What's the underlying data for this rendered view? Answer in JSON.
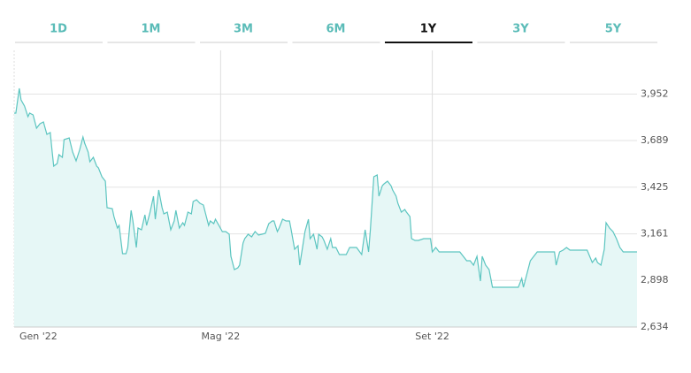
{
  "tabs": [
    "1D",
    "1M",
    "3M",
    "6M",
    "1Y",
    "3Y",
    "5Y"
  ],
  "active_tab": 4,
  "chart_data": {
    "type": "area",
    "color": "#5cc5c0",
    "fill": "#e6f7f6",
    "x": [
      0,
      1,
      3,
      4,
      6,
      8,
      9,
      11,
      13,
      15,
      17,
      19,
      21,
      22,
      23,
      25,
      26,
      28,
      29,
      32,
      34,
      36,
      38,
      40,
      41,
      43,
      44,
      46,
      48,
      49,
      51,
      53,
      54,
      57,
      58,
      60,
      61,
      63,
      65,
      66,
      68,
      69,
      71,
      72,
      74,
      76,
      77,
      79,
      81,
      82,
      84,
      86,
      87,
      89,
      91,
      93,
      94,
      96,
      98,
      99,
      101,
      103,
      104,
      106,
      108,
      110,
      111,
      113,
      114,
      116,
      117,
      119,
      121,
      123,
      125,
      126,
      128,
      130,
      131,
      133,
      134,
      136,
      138,
      140,
      142,
      144,
      146,
      148,
      150,
      151,
      153,
      154,
      156,
      158,
      160,
      161,
      163,
      165,
      166,
      168,
      169,
      171,
      172,
      174,
      176,
      177,
      179,
      180,
      182,
      184,
      185,
      187,
      189,
      191,
      193,
      195,
      197,
      199,
      202,
      204,
      206,
      207,
      209,
      211,
      212,
      214,
      215,
      217,
      219,
      220,
      222,
      223,
      225,
      227,
      228,
      230,
      231,
      233,
      235,
      238,
      240,
      242,
      243,
      245,
      247,
      249,
      251,
      254,
      257,
      259,
      261,
      263,
      265,
      267,
      269,
      271,
      272,
      274,
      276,
      278,
      281,
      285,
      289,
      293,
      295,
      296,
      298,
      300,
      302,
      304,
      306,
      309,
      312,
      314,
      315,
      317,
      319,
      321,
      323,
      325,
      329,
      333,
      336,
      338,
      339,
      341,
      343,
      344,
      346,
      348,
      350,
      352,
      354,
      357,
      360,
      362
    ],
    "values": [
      3844,
      3844,
      3984,
      3919,
      3884,
      3824,
      3844,
      3834,
      3759,
      3784,
      3794,
      3724,
      3734,
      3634,
      3544,
      3559,
      3609,
      3594,
      3694,
      3704,
      3624,
      3574,
      3634,
      3709,
      3674,
      3624,
      3569,
      3594,
      3544,
      3534,
      3484,
      3459,
      3309,
      3304,
      3259,
      3194,
      3209,
      3049,
      3049,
      3084,
      3294,
      3234,
      3084,
      3194,
      3184,
      3269,
      3209,
      3284,
      3374,
      3244,
      3409,
      3309,
      3274,
      3284,
      3184,
      3234,
      3294,
      3194,
      3224,
      3209,
      3284,
      3274,
      3344,
      3354,
      3334,
      3324,
      3284,
      3209,
      3234,
      3219,
      3244,
      3209,
      3174,
      3174,
      3159,
      3034,
      2959,
      2969,
      2984,
      3109,
      3134,
      3159,
      3144,
      3174,
      3154,
      3159,
      3164,
      3219,
      3234,
      3234,
      3174,
      3194,
      3244,
      3234,
      3234,
      3184,
      3074,
      3094,
      2984,
      3109,
      3174,
      3244,
      3134,
      3159,
      3074,
      3159,
      3144,
      3124,
      3074,
      3134,
      3084,
      3084,
      3044,
      3044,
      3044,
      3084,
      3084,
      3084,
      3044,
      3184,
      3059,
      3184,
      3484,
      3494,
      3374,
      3434,
      3444,
      3459,
      3434,
      3409,
      3374,
      3334,
      3284,
      3299,
      3284,
      3259,
      3134,
      3124,
      3124,
      3134,
      3134,
      3134,
      3059,
      3084,
      3059,
      3059,
      3059,
      3059,
      3059,
      3059,
      3034,
      3009,
      3009,
      2984,
      3034,
      2894,
      3034,
      2984,
      2959,
      2859,
      2859,
      2859,
      2859,
      2859,
      2909,
      2859,
      2934,
      3009,
      3034,
      3059,
      3059,
      3059,
      3059,
      3059,
      2984,
      3059,
      3069,
      3084,
      3069,
      3069,
      3069,
      3069,
      2999,
      3024,
      2999,
      2984,
      3074,
      3224,
      3194,
      3174,
      3134,
      3084,
      3059,
      3059,
      3059,
      3059
    ],
    "xlim": [
      0,
      362
    ],
    "xticks": [
      {
        "value": 0,
        "label": "Gen '22"
      },
      {
        "value": 120,
        "label": "Mag '22"
      },
      {
        "value": 243,
        "label": "Set '22"
      }
    ],
    "ylim": [
      2634,
      4199
    ],
    "yticks": [
      {
        "value": 2634,
        "label": "2,634"
      },
      {
        "value": 2898,
        "label": "2,898"
      },
      {
        "value": 3161,
        "label": "3,161"
      },
      {
        "value": 3425,
        "label": "3,425"
      },
      {
        "value": 3689,
        "label": "3,689"
      },
      {
        "value": 3952,
        "label": "3,952"
      }
    ],
    "grid": true
  }
}
